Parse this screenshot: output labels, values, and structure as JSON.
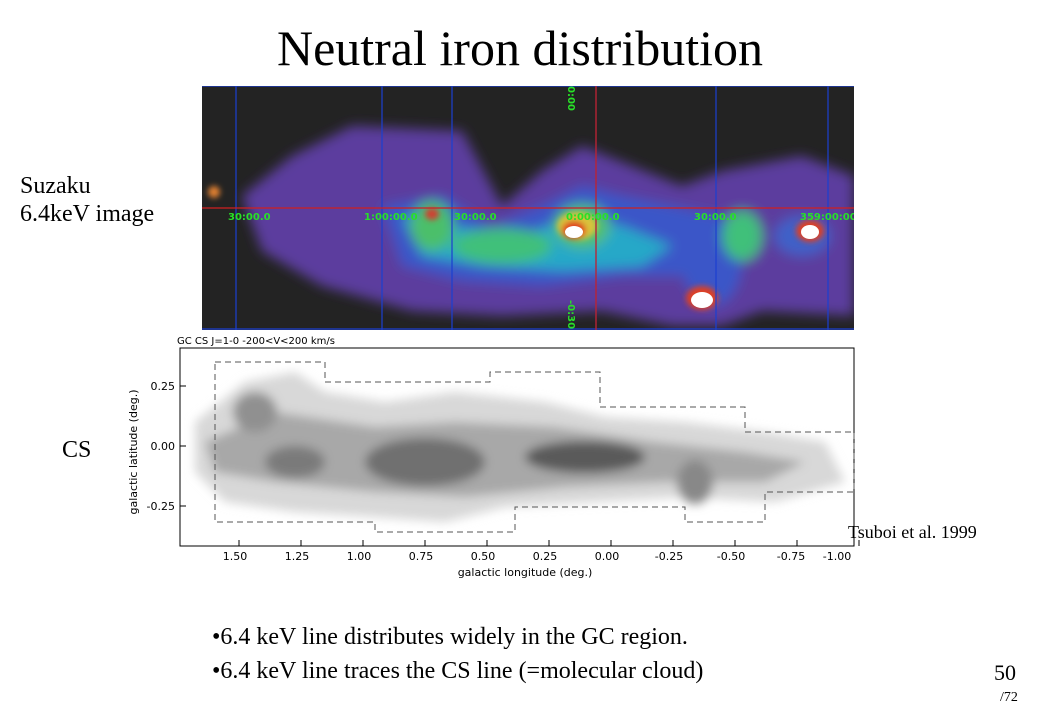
{
  "slide": {
    "title": "Neutral iron distribution",
    "page_number": "50",
    "page_total": "/72"
  },
  "labels": {
    "suzaku_line1": "Suzaku",
    "suzaku_line2": "6.4keV image",
    "cs": "CS",
    "citation": "Tsuboi et al. 1999"
  },
  "suzaku_map": {
    "coord_labels": [
      "30:00.0",
      "1:00:00.0",
      "30:00.0",
      "0:00:00.0",
      "30:00.0",
      "359:00:00"
    ],
    "vertical_labels": [
      "0:00",
      "-0:30"
    ]
  },
  "cs_map": {
    "header": "GC CS J=1-0  -200<V<200 km/s",
    "xlabel": "galactic  longitude  (deg.)",
    "ylabel": "galactic  latitude  (deg.)",
    "xticks": [
      "1.50",
      "1.25",
      "1.00",
      "0.75",
      "0.50",
      "0.25",
      "0.00",
      "-0.25",
      "-0.50",
      "-0.75",
      "-1.00"
    ],
    "yticks": [
      "0.25",
      "0.00",
      "-0.25"
    ]
  },
  "bullets": [
    "6.4 keV line distributes widely in the GC region.",
    "6.4 keV line traces the CS line (=molecular cloud)"
  ]
}
